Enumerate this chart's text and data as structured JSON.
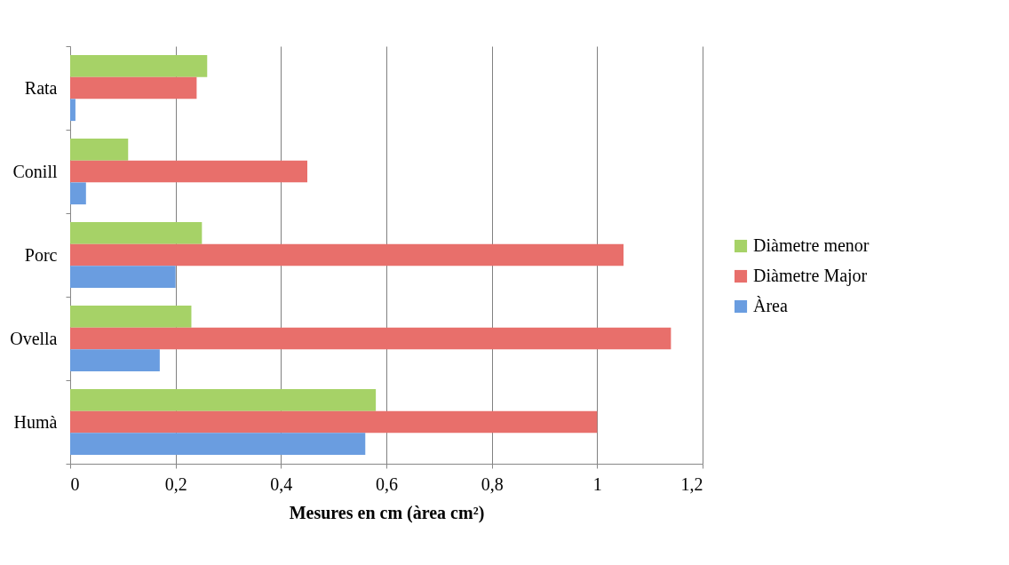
{
  "chart_data": {
    "type": "bar",
    "orientation": "horizontal",
    "xlabel": "Mesures en cm (àrea cm²)",
    "categories": [
      "Rata",
      "Conill",
      "Porc",
      "Ovella",
      "Humà"
    ],
    "series": [
      {
        "name": "Diàmetre menor",
        "color": "#a6d267",
        "values": [
          0.26,
          0.11,
          0.25,
          0.23,
          0.58
        ]
      },
      {
        "name": "Diàmetre Major",
        "color": "#e86f6b",
        "values": [
          0.24,
          0.45,
          1.05,
          1.14,
          1.0
        ]
      },
      {
        "name": "Àrea",
        "color": "#6a9de0",
        "values": [
          0.01,
          0.03,
          0.2,
          0.17,
          0.56
        ]
      }
    ],
    "xlim": [
      0,
      1.2
    ],
    "xticks": [
      0,
      {
        "value": 0.2,
        "label": "0,2"
      },
      {
        "value": 0.4,
        "label": "0,4"
      },
      {
        "value": 0.6,
        "label": "0,6"
      },
      {
        "value": 0.8,
        "label": "0,8"
      },
      1,
      {
        "value": 1.2,
        "label": "1,2"
      }
    ],
    "grid": "x",
    "legend": "right"
  }
}
